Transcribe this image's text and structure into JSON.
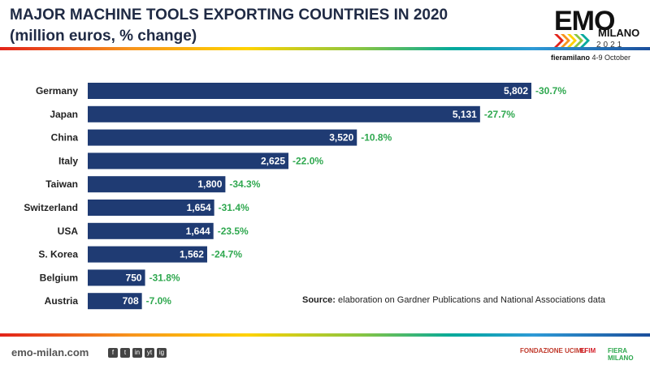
{
  "header": {
    "title_line1": "MAJOR MACHINE TOOLS EXPORTING COUNTRIES IN 2020",
    "title_line2": "(million euros, % change)"
  },
  "logo": {
    "emo": "EMO",
    "milano": "MILANO",
    "year": "2021",
    "fiera": "fieramilano",
    "dates": "4-9 October"
  },
  "chart_data": {
    "type": "bar",
    "orientation": "horizontal",
    "title": "MAJOR MACHINE TOOLS EXPORTING COUNTRIES IN 2020",
    "subtitle": "(million euros, % change)",
    "categories": [
      "Germany",
      "Japan",
      "China",
      "Italy",
      "Taiwan",
      "Switzerland",
      "USA",
      "S. Korea",
      "Belgium",
      "Austria"
    ],
    "values": [
      5802,
      5131,
      3520,
      2625,
      1800,
      1654,
      1644,
      1562,
      750,
      708
    ],
    "value_labels": [
      "5,802",
      "5,131",
      "3,520",
      "2,625",
      "1,800",
      "1,654",
      "1,644",
      "1,562",
      "750",
      "708"
    ],
    "changes": [
      "-30.7%",
      "-27.7%",
      "-10.8%",
      "-22.0%",
      "-34.3%",
      "-31.4%",
      "-23.5%",
      "-24.7%",
      "-31.8%",
      "-7.0%"
    ],
    "xlim": [
      0,
      5802
    ],
    "bar_color": "#1f3b73",
    "change_color": "#2fa84f"
  },
  "source": {
    "label": "Source:",
    "text": "elaboration on Gardner Publications and National Associations data"
  },
  "footer": {
    "url": "emo-milan.com",
    "social": [
      "f",
      "t",
      "in",
      "yt",
      "ig"
    ],
    "partners": [
      "FONDAZIONE UCIMU",
      "EFIM",
      "FIERA MILANO"
    ]
  }
}
